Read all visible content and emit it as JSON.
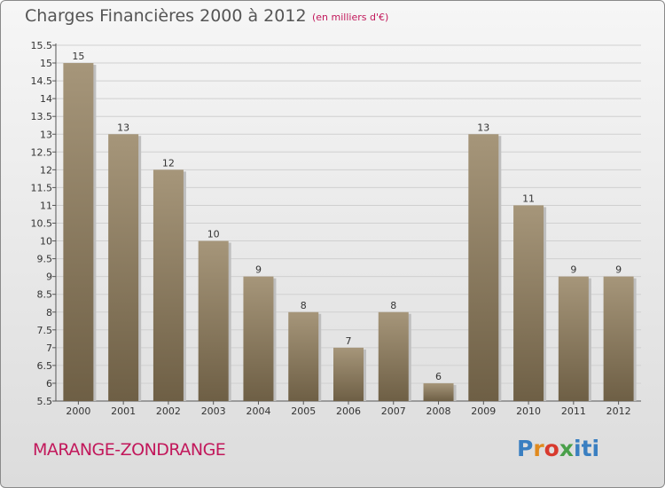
{
  "header": {
    "title": "Charges Financières 2000 à 2012",
    "unit": "(en milliers d'€)"
  },
  "footer": {
    "town": "MARANGE-ZONDRANGE",
    "logo": "Proxiti"
  },
  "colors": {
    "bar_top": "#a6967a",
    "bar_bottom": "#6e5f45",
    "accent": "#c2185b"
  },
  "chart_data": {
    "type": "bar",
    "title": "Charges Financières 2000 à 2012",
    "subtitle": "(en milliers d'€)",
    "categories": [
      "2000",
      "2001",
      "2002",
      "2003",
      "2004",
      "2005",
      "2006",
      "2007",
      "2008",
      "2009",
      "2010",
      "2011",
      "2012"
    ],
    "values": [
      15,
      13,
      12,
      10,
      9,
      8,
      7,
      8,
      6,
      13,
      11,
      9,
      9
    ],
    "ylim": [
      5.5,
      15.5
    ],
    "yticks": [
      "5.5",
      "6",
      "6.5",
      "7",
      "7.5",
      "8",
      "8.5",
      "9",
      "9.5",
      "10",
      "10.5",
      "11",
      "11.5",
      "12",
      "12.5",
      "13",
      "13.5",
      "14",
      "14.5",
      "15",
      "15.5"
    ],
    "grid": true,
    "legend": "none"
  }
}
